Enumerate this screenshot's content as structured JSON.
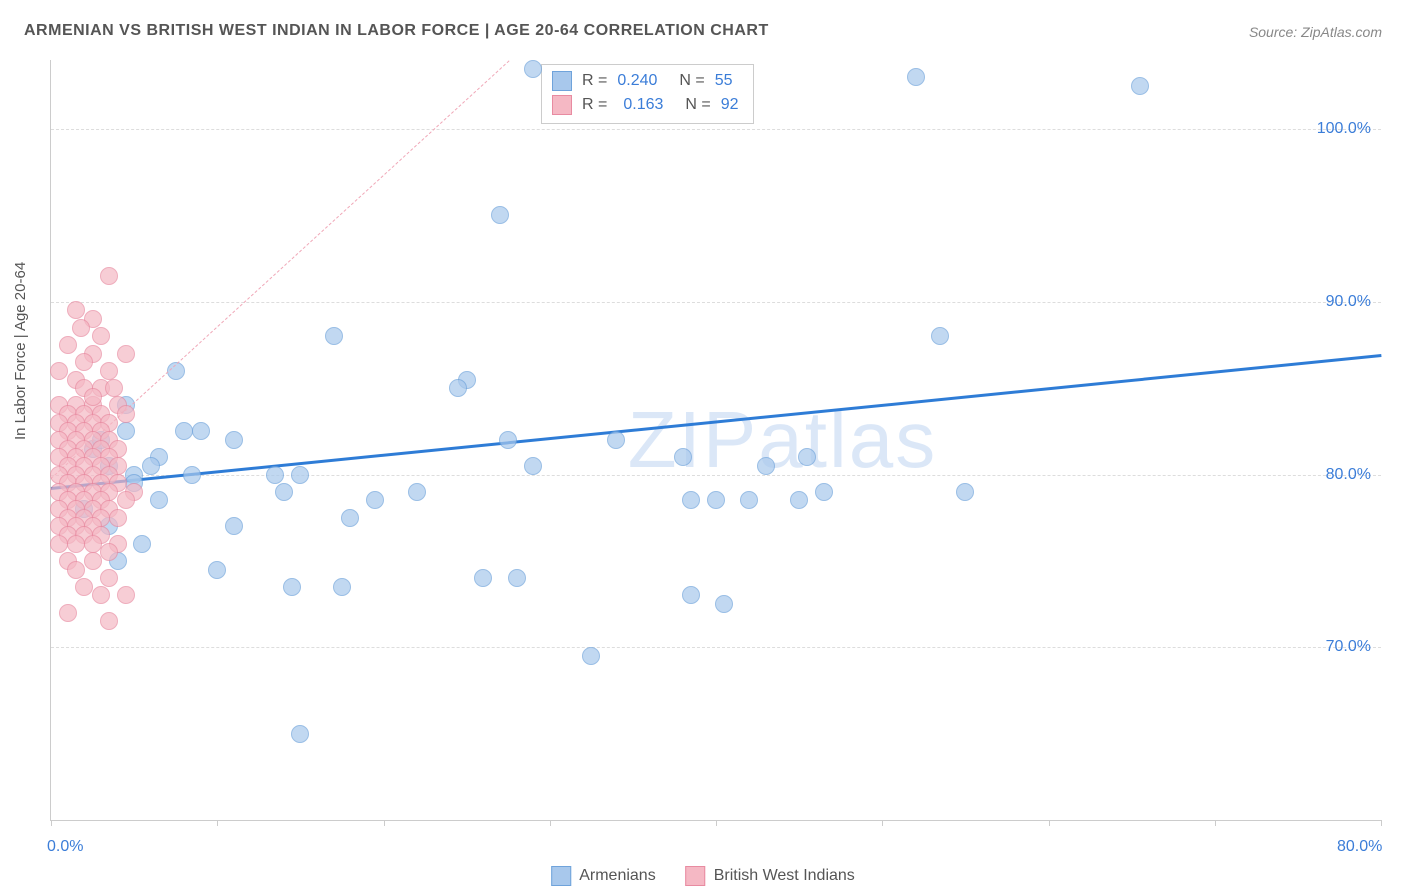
{
  "title": "ARMENIAN VS BRITISH WEST INDIAN IN LABOR FORCE | AGE 20-64 CORRELATION CHART",
  "source": "Source: ZipAtlas.com",
  "y_axis_label": "In Labor Force | Age 20-64",
  "watermark": "ZIPatlas",
  "chart": {
    "type": "scatter",
    "xlim": [
      0,
      80
    ],
    "ylim": [
      60,
      104
    ],
    "x_ticks": [
      0,
      10,
      20,
      30,
      40,
      50,
      60,
      70,
      80
    ],
    "x_tick_labels": {
      "0": "0.0%",
      "80": "80.0%"
    },
    "y_gridlines": [
      70,
      80,
      90,
      100
    ],
    "y_tick_labels": {
      "70": "70.0%",
      "80": "80.0%",
      "90": "90.0%",
      "100": "100.0%"
    },
    "background_color": "#ffffff",
    "grid_color": "#dddddd",
    "axis_color": "#cccccc",
    "tick_label_color": "#3b7dd8",
    "series": [
      {
        "name": "Armenians",
        "color_fill": "#a8c8ec",
        "color_stroke": "#6fa3db",
        "marker_radius": 8,
        "opacity": 0.7,
        "trend": {
          "y_start": 79.3,
          "y_end": 87.0,
          "color": "#2e7cd6",
          "width": 3,
          "dash": false
        },
        "stats": {
          "R": "0.240",
          "N": "55"
        },
        "points": [
          [
            29.0,
            103.5
          ],
          [
            65.5,
            102.5
          ],
          [
            52.0,
            103.0
          ],
          [
            27.0,
            95.0
          ],
          [
            17.0,
            88.0
          ],
          [
            7.5,
            86.0
          ],
          [
            25.0,
            85.5
          ],
          [
            24.5,
            85.0
          ],
          [
            9.0,
            82.5
          ],
          [
            11.0,
            82.0
          ],
          [
            8.0,
            82.5
          ],
          [
            4.5,
            82.5
          ],
          [
            6.5,
            81.0
          ],
          [
            2.5,
            81.5
          ],
          [
            3.5,
            80.5
          ],
          [
            5.0,
            80.0
          ],
          [
            13.5,
            80.0
          ],
          [
            15.0,
            80.0
          ],
          [
            18.0,
            77.5
          ],
          [
            22.0,
            79.0
          ],
          [
            27.5,
            82.0
          ],
          [
            29.0,
            80.5
          ],
          [
            34.0,
            82.0
          ],
          [
            38.0,
            81.0
          ],
          [
            43.0,
            80.5
          ],
          [
            45.5,
            81.0
          ],
          [
            38.5,
            78.5
          ],
          [
            42.0,
            78.5
          ],
          [
            40.0,
            78.5
          ],
          [
            46.5,
            79.0
          ],
          [
            53.5,
            88.0
          ],
          [
            55.0,
            79.0
          ],
          [
            19.5,
            78.5
          ],
          [
            14.0,
            79.0
          ],
          [
            6.5,
            78.5
          ],
          [
            2.0,
            78.0
          ],
          [
            3.5,
            77.0
          ],
          [
            11.0,
            77.0
          ],
          [
            4.0,
            75.0
          ],
          [
            10.0,
            74.5
          ],
          [
            14.5,
            73.5
          ],
          [
            17.5,
            73.5
          ],
          [
            26.0,
            74.0
          ],
          [
            28.0,
            74.0
          ],
          [
            38.5,
            73.0
          ],
          [
            32.5,
            69.5
          ],
          [
            15.0,
            65.0
          ],
          [
            5.0,
            79.5
          ],
          [
            6.0,
            80.5
          ],
          [
            8.5,
            80.0
          ],
          [
            3.0,
            82.0
          ],
          [
            4.5,
            84.0
          ],
          [
            45.0,
            78.5
          ],
          [
            40.5,
            72.5
          ],
          [
            5.5,
            76.0
          ]
        ]
      },
      {
        "name": "British West Indians",
        "color_fill": "#f5b8c4",
        "color_stroke": "#e88ba1",
        "marker_radius": 8,
        "opacity": 0.7,
        "trend": {
          "y_start": 79.8,
          "y_end": 150.0,
          "color": "#f0a8b8",
          "width": 1.5,
          "dash": true
        },
        "stats": {
          "R": "0.163",
          "N": "92"
        },
        "points": [
          [
            3.5,
            91.5
          ],
          [
            1.5,
            89.5
          ],
          [
            2.5,
            89.0
          ],
          [
            3.0,
            88.0
          ],
          [
            1.0,
            87.5
          ],
          [
            2.5,
            87.0
          ],
          [
            4.5,
            87.0
          ],
          [
            2.0,
            86.5
          ],
          [
            0.5,
            86.0
          ],
          [
            3.5,
            86.0
          ],
          [
            1.5,
            85.5
          ],
          [
            2.0,
            85.0
          ],
          [
            3.0,
            85.0
          ],
          [
            3.8,
            85.0
          ],
          [
            0.5,
            84.0
          ],
          [
            1.5,
            84.0
          ],
          [
            2.5,
            84.0
          ],
          [
            4.0,
            84.0
          ],
          [
            1.0,
            83.5
          ],
          [
            2.0,
            83.5
          ],
          [
            3.0,
            83.5
          ],
          [
            4.5,
            83.5
          ],
          [
            0.5,
            83.0
          ],
          [
            1.5,
            83.0
          ],
          [
            2.5,
            83.0
          ],
          [
            3.5,
            83.0
          ],
          [
            1.0,
            82.5
          ],
          [
            2.0,
            82.5
          ],
          [
            3.0,
            82.5
          ],
          [
            0.5,
            82.0
          ],
          [
            1.5,
            82.0
          ],
          [
            2.5,
            82.0
          ],
          [
            3.5,
            82.0
          ],
          [
            1.0,
            81.5
          ],
          [
            2.0,
            81.5
          ],
          [
            3.0,
            81.5
          ],
          [
            4.0,
            81.5
          ],
          [
            0.5,
            81.0
          ],
          [
            1.5,
            81.0
          ],
          [
            2.5,
            81.0
          ],
          [
            3.5,
            81.0
          ],
          [
            1.0,
            80.5
          ],
          [
            2.0,
            80.5
          ],
          [
            3.0,
            80.5
          ],
          [
            4.0,
            80.5
          ],
          [
            0.5,
            80.0
          ],
          [
            1.5,
            80.0
          ],
          [
            2.5,
            80.0
          ],
          [
            3.5,
            80.0
          ],
          [
            1.0,
            79.5
          ],
          [
            2.0,
            79.5
          ],
          [
            3.0,
            79.5
          ],
          [
            4.0,
            79.5
          ],
          [
            0.5,
            79.0
          ],
          [
            1.5,
            79.0
          ],
          [
            2.5,
            79.0
          ],
          [
            3.5,
            79.0
          ],
          [
            5.0,
            79.0
          ],
          [
            1.0,
            78.5
          ],
          [
            2.0,
            78.5
          ],
          [
            3.0,
            78.5
          ],
          [
            4.5,
            78.5
          ],
          [
            0.5,
            78.0
          ],
          [
            1.5,
            78.0
          ],
          [
            2.5,
            78.0
          ],
          [
            3.5,
            78.0
          ],
          [
            1.0,
            77.5
          ],
          [
            2.0,
            77.5
          ],
          [
            3.0,
            77.5
          ],
          [
            4.0,
            77.5
          ],
          [
            0.5,
            77.0
          ],
          [
            1.5,
            77.0
          ],
          [
            2.5,
            77.0
          ],
          [
            1.0,
            76.5
          ],
          [
            2.0,
            76.5
          ],
          [
            3.0,
            76.5
          ],
          [
            0.5,
            76.0
          ],
          [
            1.5,
            76.0
          ],
          [
            2.5,
            76.0
          ],
          [
            4.0,
            76.0
          ],
          [
            1.0,
            75.0
          ],
          [
            2.5,
            75.0
          ],
          [
            3.5,
            75.5
          ],
          [
            1.5,
            74.5
          ],
          [
            3.5,
            74.0
          ],
          [
            2.0,
            73.5
          ],
          [
            3.0,
            73.0
          ],
          [
            4.5,
            73.0
          ],
          [
            1.0,
            72.0
          ],
          [
            3.5,
            71.5
          ],
          [
            2.5,
            84.5
          ],
          [
            1.8,
            88.5
          ]
        ]
      }
    ]
  },
  "legend": {
    "series1_label": "Armenians",
    "series2_label": "British West Indians"
  }
}
